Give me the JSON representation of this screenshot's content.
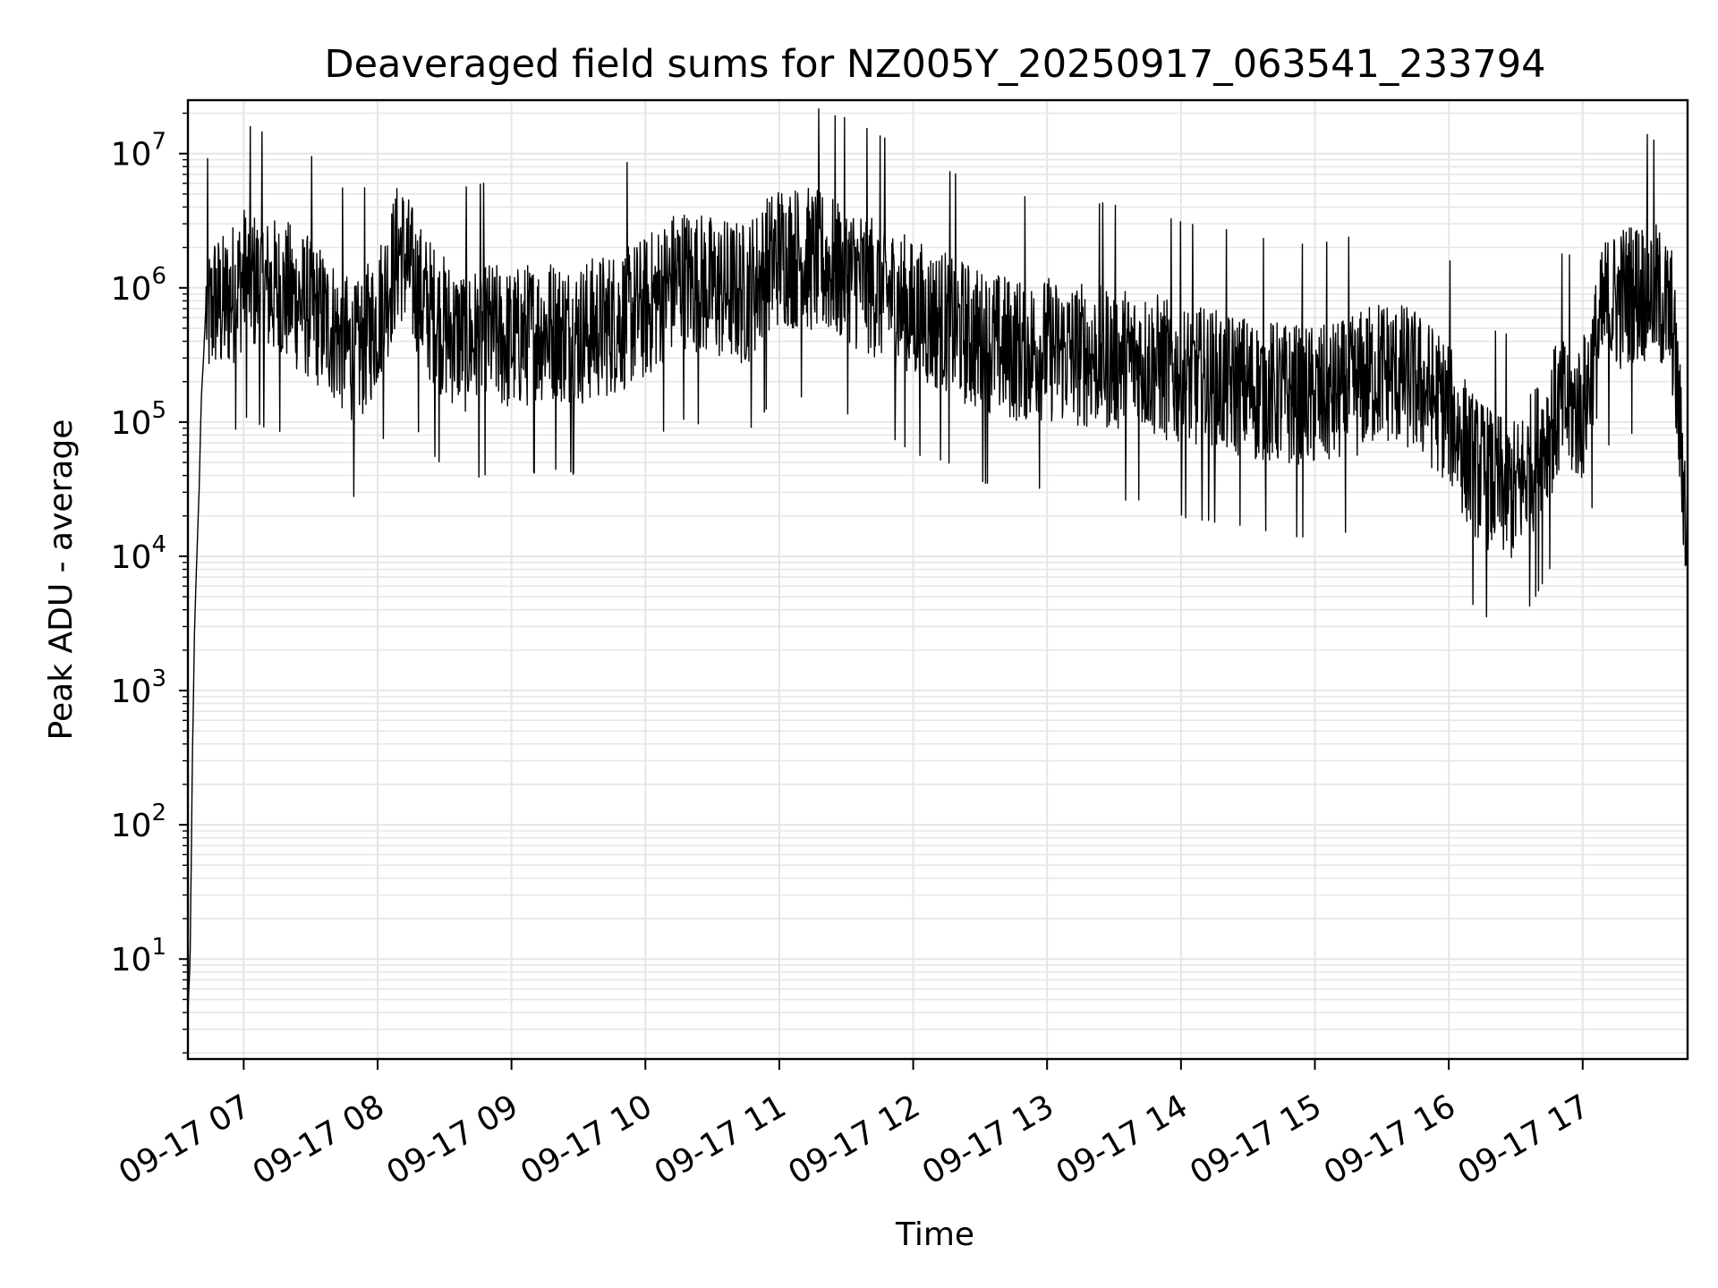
{
  "chart_data": {
    "type": "line",
    "title": "Deaveraged field sums for NZ005Y_20250917_063541_233794",
    "xlabel": "Time",
    "ylabel": "Peak ADU - average",
    "yscale": "log",
    "ylim": [
      1.8,
      25000000
    ],
    "xlim": [
      "09-17 06:35",
      "09-17 17:47"
    ],
    "grid": true,
    "line_color": "#000000",
    "grid_color": "#e6e6e6",
    "x_ticks": [
      "09-17 07",
      "09-17 08",
      "09-17 09",
      "09-17 10",
      "09-17 11",
      "09-17 12",
      "09-17 13",
      "09-17 14",
      "09-17 15",
      "09-17 16",
      "09-17 17"
    ],
    "y_ticks": [
      {
        "base": "10",
        "exp": "1"
      },
      {
        "base": "10",
        "exp": "2"
      },
      {
        "base": "10",
        "exp": "3"
      },
      {
        "base": "10",
        "exp": "4"
      },
      {
        "base": "10",
        "exp": "5"
      },
      {
        "base": "10",
        "exp": "6"
      },
      {
        "base": "10",
        "exp": "7"
      }
    ],
    "series": [
      {
        "x": [
          "09-17 06:35",
          "09-17 06:36",
          "09-17 06:37",
          "09-17 06:38",
          "09-17 06:39",
          "09-17 06:40",
          "09-17 06:41",
          "09-17 06:42",
          "09-17 06:43",
          "09-17 06:45",
          "09-17 06:47",
          "09-17 06:50",
          "09-17 06:55",
          "09-17 07:00",
          "09-17 07:10",
          "09-17 07:20",
          "09-17 07:30",
          "09-17 07:40",
          "09-17 07:50",
          "09-17 08:00",
          "09-17 08:10",
          "09-17 08:20",
          "09-17 08:30",
          "09-17 08:40",
          "09-17 08:50",
          "09-17 09:00",
          "09-17 09:15",
          "09-17 09:30",
          "09-17 09:45",
          "09-17 10:00",
          "09-17 10:15",
          "09-17 10:30",
          "09-17 10:45",
          "09-17 11:00",
          "09-17 11:15",
          "09-17 11:30",
          "09-17 11:45",
          "09-17 12:00",
          "09-17 12:15",
          "09-17 12:30",
          "09-17 12:45",
          "09-17 13:00",
          "09-17 13:15",
          "09-17 13:30",
          "09-17 13:45",
          "09-17 14:00",
          "09-17 14:15",
          "09-17 14:30",
          "09-17 14:45",
          "09-17 15:00",
          "09-17 15:15",
          "09-17 15:30",
          "09-17 15:45",
          "09-17 16:00",
          "09-17 16:10",
          "09-17 16:20",
          "09-17 16:30",
          "09-17 16:40",
          "09-17 16:50",
          "09-17 17:00",
          "09-17 17:10",
          "09-17 17:20",
          "09-17 17:30",
          "09-17 17:35",
          "09-17 17:40",
          "09-17 17:45",
          "09-17 17:47"
        ],
        "values": [
          4,
          10,
          300,
          3000,
          10000,
          30000,
          150000,
          300000,
          700000,
          600000,
          800000,
          700000,
          900000,
          1200000,
          1000000,
          900000,
          700000,
          500000,
          300000,
          600000,
          2000000,
          800000,
          500000,
          400000,
          450000,
          400000,
          500000,
          450000,
          550000,
          700000,
          1200000,
          1000000,
          900000,
          1800000,
          1600000,
          1300000,
          1000000,
          650000,
          550000,
          400000,
          350000,
          350000,
          320000,
          300000,
          280000,
          220000,
          200000,
          180000,
          160000,
          150000,
          170000,
          250000,
          200000,
          120000,
          50000,
          35000,
          30000,
          60000,
          130000,
          120000,
          700000,
          900000,
          1000000,
          800000,
          600000,
          40000,
          10000
        ]
      }
    ]
  }
}
